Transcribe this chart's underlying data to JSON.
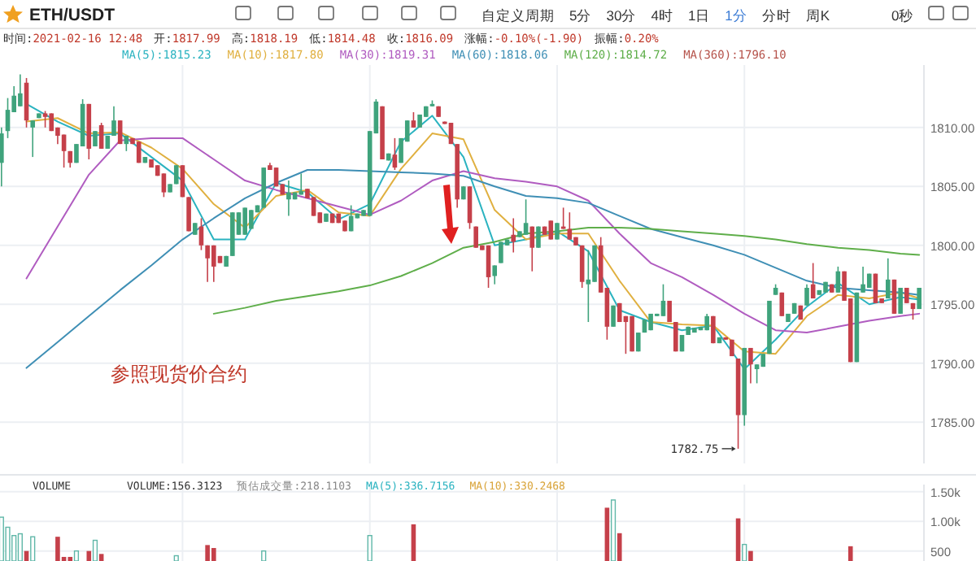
{
  "chart_data": [
    {
      "type": "candlestick",
      "title": "ETH/USDT",
      "categories": [
        null,
        null,
        null,
        null,
        null,
        null,
        null,
        null,
        null,
        null,
        null,
        null,
        null,
        null,
        null,
        null,
        null,
        null,
        null,
        null,
        null,
        null,
        null,
        null,
        null,
        null,
        null,
        null,
        null,
        null,
        null,
        null,
        null,
        null,
        null,
        null,
        null,
        null,
        null,
        null,
        null,
        null,
        null,
        null,
        null,
        null,
        null,
        null,
        null,
        null,
        null,
        null,
        null,
        null,
        null,
        null,
        null,
        null,
        null,
        null,
        null,
        null,
        null,
        null,
        null,
        null,
        null,
        null,
        null,
        null,
        null,
        null,
        null,
        null,
        null,
        null,
        null,
        null,
        null,
        null,
        null,
        null,
        null,
        null,
        null,
        null,
        null,
        null,
        null,
        null,
        null,
        null,
        null,
        null,
        null,
        null,
        null,
        null,
        null,
        null,
        null,
        null,
        null,
        null,
        null,
        null,
        null,
        null,
        null,
        null,
        null,
        null,
        null,
        null,
        null,
        null,
        null,
        null,
        null,
        null,
        null,
        null,
        null,
        null,
        null,
        null,
        null,
        null,
        null,
        null,
        null,
        null,
        null,
        null,
        null,
        null,
        null,
        null,
        null,
        null,
        null,
        null,
        null,
        null,
        null,
        null,
        null,
        null
      ],
      "ohlc": [
        [
          1807.0,
          1810.0,
          1805.0,
          1809.5
        ],
        [
          1809.7,
          1812.5,
          1809.1,
          1811.5
        ],
        [
          1811.3,
          1813.5,
          1811.3,
          1812.7
        ],
        [
          1811.8,
          1814.5,
          1811.8,
          1812.9
        ],
        [
          1813.8,
          1814.2,
          1810.0,
          1810.6
        ],
        [
          1810.0,
          1810.6,
          1807.5,
          1810.6
        ],
        [
          1810.8,
          1811.2,
          1810.8,
          1811.2
        ],
        [
          1811.2,
          1811.4,
          1810.0,
          1810.9
        ],
        [
          1811.2,
          1811.2,
          1809.7,
          1809.7
        ],
        [
          1810.0,
          1810.0,
          1808.6,
          1809.3
        ],
        [
          1809.4,
          1809.4,
          1806.6,
          1808.0
        ],
        [
          1808.0,
          1808.0,
          1806.6,
          1807.0
        ],
        [
          1807.0,
          1808.6,
          1807.0,
          1808.6
        ],
        [
          1808.4,
          1812.4,
          1808.4,
          1812.0
        ],
        [
          1812.0,
          1812.0,
          1807.3,
          1808.2
        ],
        [
          1808.4,
          1809.7,
          1808.4,
          1809.7
        ],
        [
          1810.2,
          1810.4,
          1808.2,
          1808.2
        ],
        [
          1808.2,
          1809.3,
          1808.2,
          1809.3
        ],
        [
          1809.3,
          1811.8,
          1809.3,
          1810.6
        ],
        [
          1810.6,
          1810.6,
          1808.6,
          1808.6
        ],
        [
          1808.6,
          1809.3,
          1808.0,
          1809.3
        ],
        [
          1809.1,
          1809.1,
          1808.6,
          1808.6
        ],
        [
          1808.8,
          1808.8,
          1807.0,
          1807.0
        ],
        [
          1807.0,
          1807.5,
          1807.0,
          1807.5
        ],
        [
          1807.3,
          1807.3,
          1806.6,
          1806.6
        ],
        [
          1806.8,
          1806.8,
          1805.9,
          1805.9
        ],
        [
          1806.1,
          1806.1,
          1804.1,
          1804.5
        ],
        [
          1804.5,
          1805.2,
          1804.5,
          1805.2
        ],
        [
          1805.2,
          1806.8,
          1805.2,
          1806.8
        ],
        [
          1806.8,
          1806.8,
          1804.1,
          1804.1
        ],
        [
          1804.1,
          1804.1,
          1801.2,
          1801.2
        ],
        [
          1800.9,
          1801.9,
          1800.9,
          1801.9
        ],
        [
          1801.6,
          1802.3,
          1799.6,
          1800.0
        ],
        [
          1800.0,
          1800.0,
          1796.9,
          1798.9
        ],
        [
          1800.0,
          1800.0,
          1796.9,
          1798.2
        ],
        [
          1799.1,
          1799.1,
          1798.5,
          1798.5
        ],
        [
          1798.2,
          1799.1,
          1798.2,
          1799.1
        ],
        [
          1799.1,
          1802.8,
          1799.1,
          1802.8
        ],
        [
          1800.9,
          1802.8,
          1800.9,
          1802.8
        ],
        [
          1800.9,
          1803.2,
          1800.9,
          1803.2
        ],
        [
          1801.4,
          1803.0,
          1801.4,
          1803.0
        ],
        [
          1802.8,
          1803.4,
          1802.8,
          1803.4
        ],
        [
          1803.2,
          1806.6,
          1803.2,
          1806.6
        ],
        [
          1806.8,
          1807.0,
          1806.4,
          1806.4
        ],
        [
          1806.6,
          1806.6,
          1805.0,
          1805.0
        ],
        [
          1805.2,
          1805.2,
          1804.3,
          1804.3
        ],
        [
          1803.9,
          1805.5,
          1802.5,
          1804.5
        ],
        [
          1803.9,
          1804.5,
          1803.9,
          1804.5
        ],
        [
          1804.3,
          1806.1,
          1804.3,
          1804.6
        ],
        [
          1804.8,
          1804.8,
          1804.0,
          1804.0
        ],
        [
          1804.1,
          1804.1,
          1802.5,
          1802.5
        ],
        [
          1802.8,
          1802.8,
          1801.9,
          1801.9
        ],
        [
          1802.0,
          1802.7,
          1802.0,
          1802.7
        ],
        [
          1802.7,
          1802.7,
          1801.9,
          1801.9
        ],
        [
          1802.7,
          1802.7,
          1801.9,
          1801.9
        ],
        [
          1802.1,
          1802.1,
          1801.2,
          1801.2
        ],
        [
          1801.2,
          1803.4,
          1801.2,
          1802.5
        ],
        [
          1802.3,
          1802.7,
          1802.3,
          1802.7
        ],
        [
          1802.5,
          1803.0,
          1802.5,
          1803.0
        ],
        [
          1802.5,
          1809.7,
          1802.5,
          1809.7
        ],
        [
          1809.5,
          1812.4,
          1809.5,
          1812.2
        ],
        [
          1811.8,
          1811.8,
          1807.3,
          1807.3
        ],
        [
          1807.2,
          1807.8,
          1807.2,
          1807.8
        ],
        [
          1807.7,
          1809.1,
          1806.4,
          1806.6
        ],
        [
          1807.0,
          1809.1,
          1807.0,
          1809.1
        ],
        [
          1808.8,
          1810.6,
          1808.8,
          1810.6
        ],
        [
          1810.6,
          1811.3,
          1810.0,
          1810.0
        ],
        [
          1810.0,
          1811.1,
          1810.0,
          1811.1
        ],
        [
          1810.9,
          1811.8,
          1810.9,
          1811.8
        ],
        [
          1811.8,
          1812.3,
          1811.8,
          1812.0
        ],
        [
          1811.8,
          1811.8,
          1810.9,
          1810.9
        ],
        [
          1810.5,
          1810.5,
          1810.3,
          1810.3
        ],
        [
          1810.4,
          1810.4,
          1808.6,
          1808.6
        ],
        [
          1808.6,
          1808.6,
          1803.2,
          1803.9
        ],
        [
          1803.9,
          1805.0,
          1803.9,
          1805.0
        ],
        [
          1805.0,
          1805.0,
          1801.4,
          1801.9
        ],
        [
          1801.6,
          1801.6,
          1799.8,
          1799.8
        ],
        [
          1800.0,
          1800.0,
          1799.6,
          1799.6
        ],
        [
          1800.0,
          1800.0,
          1796.4,
          1797.3
        ],
        [
          1797.4,
          1798.3,
          1796.7,
          1798.3
        ],
        [
          1798.5,
          1800.3,
          1798.5,
          1800.3
        ],
        [
          1800.0,
          1800.5,
          1800.0,
          1800.5
        ],
        [
          1800.9,
          1802.3,
          1799.4,
          1800.3
        ],
        [
          1800.7,
          1801.2,
          1800.7,
          1801.2
        ],
        [
          1800.9,
          1803.9,
          1800.9,
          1801.9
        ],
        [
          1801.6,
          1801.6,
          1797.8,
          1799.8
        ],
        [
          1799.8,
          1801.6,
          1799.8,
          1801.6
        ],
        [
          1801.6,
          1801.6,
          1800.9,
          1800.9
        ],
        [
          1802.1,
          1802.1,
          1800.5,
          1800.5
        ],
        [
          1800.5,
          1801.9,
          1800.5,
          1801.9
        ],
        [
          1801.6,
          1803.2,
          1801.4,
          1801.4
        ],
        [
          1801.4,
          1802.8,
          1800.5,
          1800.5
        ],
        [
          1800.7,
          1800.7,
          1800.0,
          1800.0
        ],
        [
          1800.0,
          1800.0,
          1796.4,
          1796.9
        ],
        [
          1796.7,
          1799.6,
          1793.5,
          1797.1
        ],
        [
          1796.9,
          1800.0,
          1796.9,
          1800.0
        ],
        [
          1800.0,
          1800.7,
          1796.0,
          1796.0
        ],
        [
          1796.4,
          1796.4,
          1792.0,
          1793.1
        ],
        [
          1793.1,
          1794.9,
          1793.1,
          1794.9
        ],
        [
          1795.1,
          1795.1,
          1793.5,
          1793.5
        ],
        [
          1794.0,
          1794.0,
          1790.8,
          1793.5
        ],
        [
          1794.0,
          1794.0,
          1791.0,
          1791.0
        ],
        [
          1791.0,
          1792.6,
          1791.0,
          1792.6
        ],
        [
          1792.6,
          1793.7,
          1792.6,
          1793.7
        ],
        [
          1792.8,
          1794.2,
          1792.8,
          1794.2
        ],
        [
          1794.0,
          1794.2,
          1794.0,
          1794.2
        ],
        [
          1794.0,
          1796.7,
          1794.0,
          1795.3
        ],
        [
          1795.3,
          1795.3,
          1793.5,
          1793.5
        ],
        [
          1793.5,
          1793.5,
          1791.0,
          1791.0
        ],
        [
          1791.0,
          1792.4,
          1791.0,
          1792.4
        ],
        [
          1792.4,
          1793.1,
          1792.4,
          1793.1
        ],
        [
          1792.6,
          1793.0,
          1792.6,
          1793.0
        ],
        [
          1792.8,
          1793.1,
          1792.8,
          1793.1
        ],
        [
          1792.8,
          1794.2,
          1792.8,
          1794.0
        ],
        [
          1794.0,
          1794.0,
          1791.7,
          1791.7
        ],
        [
          1791.7,
          1792.2,
          1791.7,
          1792.2
        ],
        [
          1792.2,
          1792.2,
          1792.0,
          1792.0
        ],
        [
          1792.0,
          1792.0,
          1790.6,
          1790.6
        ],
        [
          1790.4,
          1790.4,
          1782.75,
          1785.6
        ],
        [
          1785.6,
          1791.3,
          1784.7,
          1791.3
        ],
        [
          1791.3,
          1791.3,
          1788.3,
          1789.9
        ],
        [
          1789.5,
          1789.9,
          1788.3,
          1789.9
        ],
        [
          1789.7,
          1790.8,
          1789.7,
          1790.8
        ],
        [
          1790.8,
          1795.3,
          1790.8,
          1795.3
        ],
        [
          1795.8,
          1796.7,
          1795.8,
          1796.4
        ],
        [
          1796.0,
          1796.0,
          1794.0,
          1794.0
        ],
        [
          1793.5,
          1794.2,
          1793.5,
          1794.2
        ],
        [
          1794.2,
          1795.1,
          1794.2,
          1795.1
        ],
        [
          1794.9,
          1794.9,
          1793.7,
          1793.7
        ],
        [
          1794.9,
          1796.7,
          1794.9,
          1796.4
        ],
        [
          1796.7,
          1798.5,
          1795.5,
          1795.5
        ],
        [
          1795.8,
          1796.2,
          1795.8,
          1796.2
        ],
        [
          1796.0,
          1796.9,
          1796.0,
          1796.9
        ],
        [
          1796.7,
          1796.7,
          1796.0,
          1796.0
        ],
        [
          1796.0,
          1798.2,
          1796.0,
          1797.8
        ],
        [
          1797.8,
          1797.8,
          1795.3,
          1795.3
        ],
        [
          1795.5,
          1795.5,
          1790.1,
          1790.1
        ],
        [
          1790.1,
          1796.0,
          1790.1,
          1796.0
        ],
        [
          1796.0,
          1798.2,
          1796.0,
          1796.7
        ],
        [
          1796.4,
          1797.6,
          1796.4,
          1797.6
        ],
        [
          1797.6,
          1797.6,
          1795.1,
          1795.1
        ],
        [
          1795.5,
          1795.5,
          1795.1,
          1795.1
        ],
        [
          1795.5,
          1798.9,
          1795.5,
          1797.1
        ],
        [
          1797.1,
          1797.1,
          1794.2,
          1794.2
        ],
        [
          1794.2,
          1796.4,
          1794.2,
          1796.4
        ],
        [
          1796.4,
          1796.4,
          1795.1,
          1795.1
        ],
        [
          1795.1,
          1795.1,
          1793.7,
          1794.6
        ],
        [
          1794.6,
          1796.4,
          1794.6,
          1796.4
        ]
      ],
      "series": [
        {
          "name": "MA(5):1815.23",
          "type": "line",
          "color": "#2bb3c0",
          "values": [
            null,
            null,
            null,
            null,
            1812,
            null,
            null,
            null,
            null,
            1810.5,
            null,
            null,
            null,
            null,
            1809.3,
            null,
            null,
            null,
            null,
            1809.5,
            null,
            null,
            null,
            null,
            1807.5,
            null,
            null,
            null,
            null,
            1805.5,
            null,
            null,
            null,
            null,
            1800.5,
            null,
            null,
            null,
            null,
            1800.5,
            null,
            null,
            null,
            null,
            1805.3,
            null,
            null,
            null,
            null,
            1804.5,
            null,
            null,
            null,
            null,
            1802.2,
            null,
            null,
            null,
            null,
            1803.5,
            null,
            null,
            null,
            null,
            1808.8,
            null,
            null,
            null,
            null,
            1811,
            null,
            null,
            null,
            null,
            1807.5,
            null,
            null,
            null,
            null,
            1800,
            null,
            null,
            null,
            null,
            1800.5,
            null,
            null,
            null,
            null,
            1801.2,
            null,
            null,
            null,
            null,
            1799.5,
            null,
            null,
            null,
            null,
            1794.5,
            null,
            null,
            null,
            null,
            1793.5,
            null,
            null,
            null,
            null,
            1792.8,
            null,
            null,
            null,
            null,
            1793.2,
            null,
            null,
            null,
            null,
            1789.5,
            null,
            null,
            null,
            null,
            1792,
            null,
            null,
            null,
            null,
            1794.8,
            null,
            null,
            null,
            null,
            1796.8,
            null,
            null,
            null,
            null,
            1795,
            null,
            null,
            null,
            null,
            1795.6,
            null,
            null,
            1795.4
          ]
        },
        {
          "name": "MA(10):1817.80",
          "type": "line",
          "color": "#e0b040",
          "values": [
            null,
            null,
            null,
            null,
            1810.5,
            null,
            null,
            null,
            null,
            1810.8,
            null,
            null,
            null,
            null,
            1809.5,
            null,
            null,
            null,
            null,
            1809.6,
            null,
            null,
            null,
            null,
            1808.3,
            null,
            null,
            null,
            null,
            1806.5,
            null,
            null,
            null,
            null,
            1803.5,
            null,
            null,
            null,
            null,
            1801.5,
            null,
            null,
            null,
            null,
            1804.2,
            null,
            null,
            null,
            null,
            1804.7,
            null,
            null,
            null,
            null,
            1802.8,
            null,
            null,
            null,
            null,
            1802.5,
            null,
            null,
            null,
            null,
            1806.5,
            null,
            null,
            null,
            null,
            1809.5,
            null,
            null,
            null,
            null,
            1809,
            null,
            null,
            null,
            null,
            1803,
            null,
            null,
            null,
            null,
            1800.5,
            null,
            null,
            null,
            null,
            1801,
            null,
            null,
            null,
            null,
            1801,
            null,
            null,
            null,
            null,
            1797,
            null,
            null,
            null,
            null,
            1793.5,
            null,
            null,
            null,
            null,
            1793.3,
            null,
            null,
            null,
            null,
            1793.2,
            null,
            null,
            null,
            null,
            1791,
            null,
            null,
            null,
            null,
            1790.8,
            null,
            null,
            null,
            null,
            1794,
            null,
            null,
            null,
            null,
            1795.8,
            null,
            null,
            null,
            null,
            1795.5,
            null,
            null,
            null,
            null,
            1796,
            null,
            null,
            1795.5
          ]
        },
        {
          "name": "MA(30):1819.31",
          "type": "line",
          "color": "#b05cc0",
          "values": [
            null,
            null,
            null,
            null,
            1797.2,
            null,
            null,
            null,
            null,
            1801.6,
            null,
            null,
            null,
            null,
            1806,
            null,
            null,
            null,
            null,
            1808.9,
            null,
            null,
            null,
            null,
            1809.1,
            null,
            null,
            null,
            null,
            1809.1,
            null,
            null,
            null,
            null,
            1807.3,
            null,
            null,
            null,
            null,
            1805.5,
            null,
            null,
            null,
            null,
            1804.7,
            null,
            null,
            null,
            null,
            1804,
            null,
            null,
            null,
            null,
            1803.3,
            null,
            null,
            null,
            null,
            1802.6,
            null,
            null,
            null,
            null,
            1803.8,
            null,
            null,
            null,
            null,
            1805.5,
            null,
            null,
            null,
            null,
            1806.3,
            null,
            null,
            null,
            null,
            1805.7,
            null,
            null,
            null,
            null,
            1805.4,
            null,
            null,
            null,
            null,
            1805,
            null,
            null,
            null,
            null,
            1803.8,
            null,
            null,
            null,
            null,
            1801,
            null,
            null,
            null,
            null,
            1798.5,
            null,
            null,
            null,
            null,
            1797.3,
            null,
            null,
            null,
            null,
            1795.8,
            null,
            null,
            null,
            null,
            1794.2,
            null,
            null,
            null,
            null,
            1792.8,
            null,
            null,
            null,
            null,
            1792.6,
            null,
            null,
            null,
            null,
            1793.1,
            null,
            null,
            null,
            null,
            1793.6,
            null,
            null,
            null,
            null,
            1794,
            null,
            null,
            1794.2
          ]
        },
        {
          "name": "MA(60):1818.06",
          "type": "line",
          "color": "#3f8fb5",
          "values": [
            null,
            null,
            null,
            null,
            1789.6,
            null,
            null,
            null,
            null,
            1791.8,
            null,
            null,
            null,
            null,
            1794,
            null,
            null,
            null,
            null,
            1796.2,
            null,
            null,
            null,
            null,
            1798.3,
            null,
            null,
            null,
            null,
            1800.5,
            null,
            null,
            null,
            null,
            1802.3,
            null,
            null,
            null,
            null,
            1804,
            null,
            null,
            null,
            null,
            1805.3,
            null,
            null,
            null,
            null,
            1806.4,
            null,
            null,
            null,
            null,
            1806.4,
            null,
            null,
            null,
            null,
            1806.3,
            null,
            null,
            null,
            null,
            1806.2,
            null,
            null,
            null,
            null,
            1806.1,
            null,
            null,
            null,
            null,
            1805.9,
            null,
            null,
            null,
            null,
            1805,
            null,
            null,
            null,
            null,
            1804.2,
            null,
            null,
            null,
            null,
            1804,
            null,
            null,
            null,
            null,
            1803.6,
            null,
            null,
            null,
            null,
            1802.5,
            null,
            null,
            null,
            null,
            1801.4,
            null,
            null,
            null,
            null,
            1800.7,
            null,
            null,
            null,
            null,
            1800,
            null,
            null,
            null,
            null,
            1799.2,
            null,
            null,
            null,
            null,
            1798.1,
            null,
            null,
            null,
            null,
            1797,
            null,
            null,
            null,
            null,
            1796.4,
            null,
            null,
            null,
            null,
            1796.2,
            null,
            null,
            null,
            null,
            1796,
            null,
            null,
            1795.8
          ]
        },
        {
          "name": "MA(120):1814.72",
          "type": "line",
          "color": "#5fae4a",
          "values": [
            null,
            null,
            null,
            null,
            null,
            null,
            null,
            null,
            null,
            null,
            null,
            null,
            null,
            null,
            null,
            null,
            null,
            null,
            null,
            null,
            null,
            null,
            null,
            null,
            null,
            null,
            null,
            null,
            null,
            null,
            null,
            null,
            null,
            null,
            1794.2,
            null,
            null,
            null,
            null,
            1794.7,
            null,
            null,
            null,
            null,
            1795.3,
            null,
            null,
            null,
            null,
            1795.7,
            null,
            null,
            null,
            null,
            1796.1,
            null,
            null,
            null,
            null,
            1796.6,
            null,
            null,
            null,
            null,
            1797.4,
            null,
            null,
            null,
            null,
            1798.5,
            null,
            null,
            null,
            null,
            1799.8,
            null,
            null,
            null,
            null,
            1800.3,
            null,
            null,
            null,
            null,
            1801,
            null,
            null,
            null,
            null,
            1801.2,
            null,
            null,
            null,
            null,
            1801.5,
            null,
            null,
            null,
            null,
            1801.5,
            null,
            null,
            null,
            null,
            1801.4,
            null,
            null,
            null,
            null,
            1801.2,
            null,
            null,
            null,
            null,
            1801,
            null,
            null,
            null,
            null,
            1800.8,
            null,
            null,
            null,
            null,
            1800.5,
            null,
            null,
            null,
            null,
            1800.1,
            null,
            null,
            null,
            null,
            1799.8,
            null,
            null,
            null,
            null,
            1799.6,
            null,
            null,
            null,
            null,
            1799.3,
            null,
            null,
            1799.2
          ]
        }
      ],
      "ylim": [
        1781.5,
        1815.3
      ],
      "yticks": [
        {
          "value": 1785,
          "label": "1785.00"
        },
        {
          "value": 1790,
          "label": "1790.00"
        },
        {
          "value": 1795,
          "label": "1795.00"
        },
        {
          "value": 1800,
          "label": "1800.00"
        },
        {
          "value": 1805,
          "label": "1805.00"
        },
        {
          "value": 1810,
          "label": "1810.00"
        }
      ],
      "grid": true,
      "legend": "top left",
      "annotations": [
        "自定义周期",
        "5分",
        "30分",
        "4时",
        "1日",
        "1分",
        "分时",
        "周K",
        "0秒",
        "时间:2021-02-16 12:48",
        "开:1817.99",
        "高:1818.19",
        "低:1814.48",
        "收:1816.09",
        "涨幅:-0.10%(-1.90)",
        "振幅:0.20%",
        "MA(360):1796.10",
        "参照现货价合约",
        "1782.75"
      ]
    },
    {
      "type": "bar",
      "title": "VOLUME",
      "categories": [
        null,
        null,
        null,
        null,
        null,
        null,
        null,
        null,
        null,
        null,
        null,
        null,
        null,
        null,
        null,
        null,
        null,
        null,
        null,
        null,
        null,
        null,
        null,
        null,
        null,
        null,
        null,
        null,
        null,
        null,
        null,
        null,
        null,
        null,
        null,
        null,
        null,
        null,
        null,
        null,
        null,
        null,
        null,
        null,
        null,
        null,
        null,
        null,
        null,
        null,
        null,
        null,
        null,
        null,
        null,
        null,
        null,
        null,
        null,
        null,
        null,
        null,
        null,
        null,
        null,
        null,
        null,
        null,
        null,
        null,
        null,
        null,
        null,
        null,
        null,
        null,
        null,
        null,
        null,
        null,
        null,
        null,
        null,
        null,
        null,
        null,
        null,
        null,
        null,
        null,
        null,
        null,
        null,
        null,
        null,
        null,
        null,
        null,
        null,
        null,
        null,
        null,
        null,
        null,
        null,
        null,
        null,
        null,
        null,
        null,
        null,
        null,
        null,
        null,
        null,
        null,
        null,
        null,
        null,
        null,
        null,
        null,
        null,
        null,
        null,
        null,
        null,
        null,
        null,
        null,
        null,
        null,
        null,
        null,
        null,
        null,
        null,
        null,
        null,
        null,
        null,
        null,
        null,
        null,
        null,
        null,
        null,
        null
      ],
      "values": [
        1070,
        900,
        760,
        790,
        500,
        740,
        null,
        null,
        null,
        740,
        400,
        400,
        500,
        null,
        500,
        680,
        450,
        null,
        null,
        null,
        null,
        null,
        null,
        null,
        null,
        null,
        null,
        null,
        420,
        null,
        null,
        null,
        null,
        600,
        550,
        null,
        null,
        null,
        null,
        null,
        null,
        null,
        500,
        null,
        null,
        null,
        null,
        null,
        null,
        null,
        null,
        null,
        null,
        null,
        null,
        null,
        null,
        null,
        null,
        760,
        null,
        null,
        null,
        null,
        null,
        null,
        950,
        null,
        null,
        null,
        null,
        null,
        null,
        null,
        null,
        null,
        null,
        null,
        null,
        null,
        null,
        null,
        null,
        null,
        null,
        null,
        null,
        null,
        null,
        null,
        null,
        null,
        null,
        null,
        null,
        null,
        null,
        1230,
        1360,
        800,
        null,
        null,
        null,
        null,
        null,
        null,
        null,
        null,
        null,
        null,
        null,
        null,
        null,
        null,
        null,
        null,
        null,
        null,
        1050,
        610,
        500,
        null,
        null,
        null,
        null,
        null,
        null,
        null,
        null,
        null,
        null,
        null,
        null,
        null,
        null,
        null,
        580,
        null,
        null,
        null,
        null,
        null,
        null,
        null,
        null,
        null,
        null,
        null
      ],
      "ylim": [
        331,
        1620
      ],
      "yticks": [
        500,
        {
          "value": 1000,
          "label": "1.00k"
        },
        {
          "value": 1500,
          "label": "1.50k"
        }
      ],
      "grid": true,
      "annotations": [
        "VOLUME:156.3123",
        "预估成交量:218.1103",
        "MA(5):336.7156",
        "MA(10):330.2468"
      ]
    }
  ]
}
